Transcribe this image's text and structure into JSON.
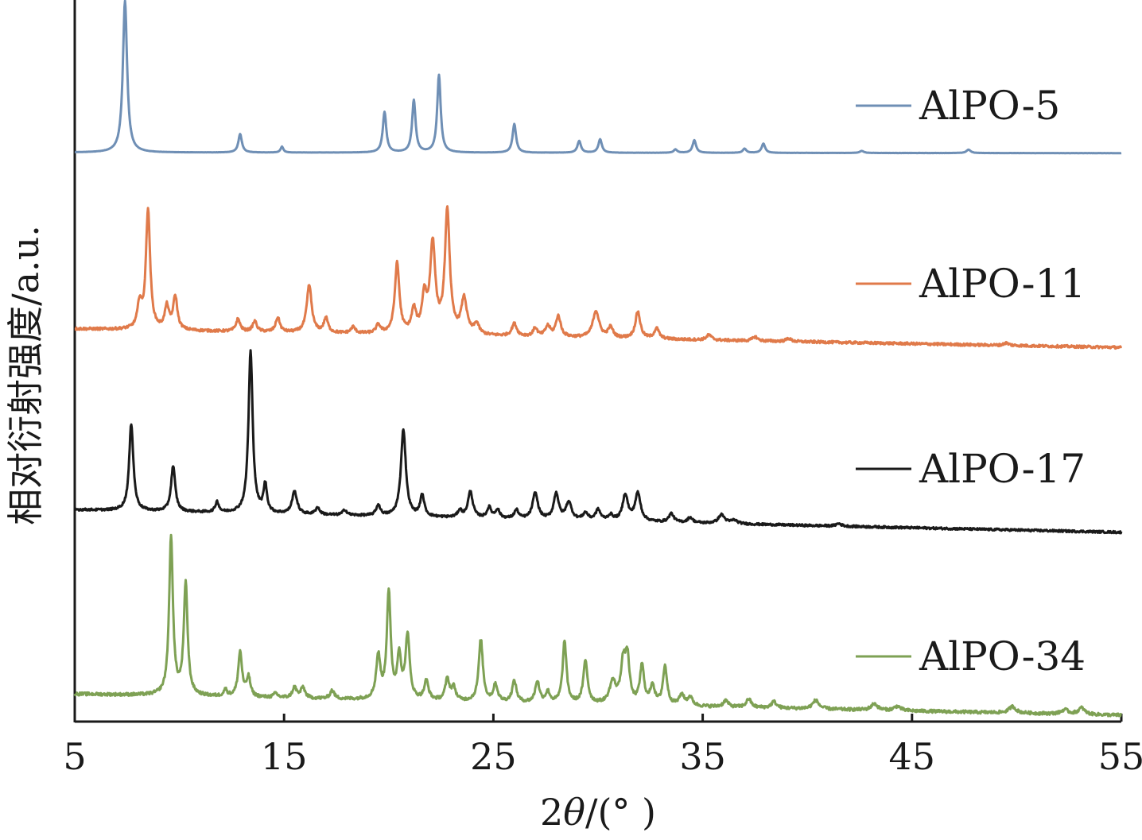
{
  "chart_data": {
    "type": "line",
    "title": "",
    "xlabel_prefix": "2",
    "xlabel_theta": "θ",
    "xlabel_suffix": "/(° )",
    "ylabel": "相对衍射强度/a.u.",
    "xlim": [
      5,
      55
    ],
    "xticks": [
      "5",
      "15",
      "25",
      "35",
      "45",
      "55"
    ],
    "legend_position": "right, next to each trace",
    "series": [
      {
        "name": "AlPO-5",
        "color": "#6f8fb5",
        "baseline_start": 0.95,
        "baseline_end": 0.91,
        "noise": 0.004,
        "peaks": [
          [
            7.4,
            9.0,
            0.12
          ],
          [
            12.9,
            1.1,
            0.1
          ],
          [
            14.9,
            0.35,
            0.08
          ],
          [
            19.8,
            2.4,
            0.1
          ],
          [
            21.2,
            3.1,
            0.1
          ],
          [
            22.4,
            4.6,
            0.1
          ],
          [
            26.0,
            1.7,
            0.1
          ],
          [
            29.1,
            0.7,
            0.1
          ],
          [
            30.1,
            0.8,
            0.1
          ],
          [
            33.7,
            0.2,
            0.1
          ],
          [
            34.6,
            0.75,
            0.1
          ],
          [
            37.0,
            0.25,
            0.1
          ],
          [
            37.9,
            0.55,
            0.1
          ],
          [
            42.6,
            0.12,
            0.12
          ],
          [
            47.7,
            0.2,
            0.12
          ]
        ]
      },
      {
        "name": "AlPO-11",
        "color": "#e07a4a",
        "baseline_start": 1.2,
        "baseline_end": 0.3,
        "noise": 0.06,
        "peaks": [
          [
            8.1,
            1.2,
            0.12
          ],
          [
            8.5,
            5.8,
            0.12
          ],
          [
            9.4,
            1.1,
            0.12
          ],
          [
            9.8,
            1.6,
            0.12
          ],
          [
            12.8,
            0.6,
            0.12
          ],
          [
            13.6,
            0.5,
            0.12
          ],
          [
            14.7,
            0.7,
            0.12
          ],
          [
            16.2,
            2.3,
            0.14
          ],
          [
            17.0,
            0.7,
            0.12
          ],
          [
            18.3,
            0.3,
            0.12
          ],
          [
            19.5,
            0.4,
            0.12
          ],
          [
            20.4,
            3.4,
            0.13
          ],
          [
            21.2,
            1.1,
            0.13
          ],
          [
            21.7,
            1.7,
            0.13
          ],
          [
            22.1,
            4.3,
            0.15
          ],
          [
            22.8,
            5.9,
            0.14
          ],
          [
            23.6,
            1.7,
            0.16
          ],
          [
            24.2,
            0.5,
            0.14
          ],
          [
            26.0,
            0.6,
            0.14
          ],
          [
            27.0,
            0.4,
            0.12
          ],
          [
            27.6,
            0.5,
            0.14
          ],
          [
            28.1,
            1.0,
            0.14
          ],
          [
            29.9,
            1.3,
            0.18
          ],
          [
            30.6,
            0.5,
            0.14
          ],
          [
            31.9,
            1.3,
            0.14
          ],
          [
            32.8,
            0.5,
            0.14
          ],
          [
            35.3,
            0.25,
            0.14
          ],
          [
            37.5,
            0.2,
            0.14
          ],
          [
            39.1,
            0.15,
            0.14
          ],
          [
            49.5,
            0.12,
            0.14
          ]
        ]
      },
      {
        "name": "AlPO-17",
        "color": "#1a1a1a",
        "baseline_start": 1.4,
        "baseline_end": 0.1,
        "noise": 0.06,
        "peaks": [
          [
            7.7,
            5.0,
            0.12
          ],
          [
            9.7,
            2.6,
            0.12
          ],
          [
            11.8,
            0.6,
            0.1
          ],
          [
            13.4,
            9.3,
            0.12
          ],
          [
            14.1,
            1.6,
            0.1
          ],
          [
            15.5,
            1.3,
            0.14
          ],
          [
            16.6,
            0.4,
            0.12
          ],
          [
            17.9,
            0.3,
            0.12
          ],
          [
            19.5,
            0.6,
            0.12
          ],
          [
            20.7,
            5.0,
            0.14
          ],
          [
            21.6,
            1.2,
            0.12
          ],
          [
            23.4,
            0.4,
            0.12
          ],
          [
            23.9,
            1.5,
            0.14
          ],
          [
            24.8,
            0.6,
            0.12
          ],
          [
            25.2,
            0.5,
            0.12
          ],
          [
            26.1,
            0.5,
            0.12
          ],
          [
            27.0,
            1.5,
            0.15
          ],
          [
            28.0,
            1.5,
            0.14
          ],
          [
            28.6,
            1.0,
            0.16
          ],
          [
            29.4,
            0.4,
            0.14
          ],
          [
            30.0,
            0.6,
            0.14
          ],
          [
            30.6,
            0.3,
            0.14
          ],
          [
            31.3,
            1.5,
            0.15
          ],
          [
            31.9,
            1.6,
            0.16
          ],
          [
            33.5,
            0.5,
            0.14
          ],
          [
            34.4,
            0.3,
            0.14
          ],
          [
            35.9,
            0.5,
            0.18
          ],
          [
            36.5,
            0.2,
            0.18
          ],
          [
            41.5,
            0.15,
            0.15
          ]
        ]
      },
      {
        "name": "AlPO-34",
        "color": "#7ea154",
        "baseline_start": 1.0,
        "baseline_end": 0.0,
        "noise": 0.07,
        "peaks": [
          [
            9.6,
            7.4,
            0.11
          ],
          [
            10.3,
            5.2,
            0.11
          ],
          [
            12.2,
            0.3,
            0.1
          ],
          [
            12.9,
            2.1,
            0.11
          ],
          [
            13.3,
            0.9,
            0.11
          ],
          [
            14.6,
            0.2,
            0.11
          ],
          [
            15.5,
            0.5,
            0.12
          ],
          [
            15.9,
            0.5,
            0.12
          ],
          [
            17.3,
            0.4,
            0.12
          ],
          [
            19.5,
            2.0,
            0.12
          ],
          [
            20.0,
            5.0,
            0.11
          ],
          [
            20.5,
            2.0,
            0.11
          ],
          [
            20.9,
            3.0,
            0.12
          ],
          [
            21.8,
            0.9,
            0.12
          ],
          [
            22.8,
            1.0,
            0.12
          ],
          [
            23.1,
            0.6,
            0.12
          ],
          [
            24.4,
            2.9,
            0.12
          ],
          [
            25.1,
            0.8,
            0.12
          ],
          [
            26.0,
            1.0,
            0.12
          ],
          [
            27.1,
            1.0,
            0.12
          ],
          [
            27.6,
            0.5,
            0.12
          ],
          [
            28.4,
            2.9,
            0.11
          ],
          [
            29.4,
            2.0,
            0.12
          ],
          [
            30.7,
            1.0,
            0.18
          ],
          [
            31.2,
            1.8,
            0.14
          ],
          [
            31.4,
            2.0,
            0.12
          ],
          [
            32.1,
            1.8,
            0.12
          ],
          [
            32.6,
            0.9,
            0.12
          ],
          [
            33.2,
            1.8,
            0.12
          ],
          [
            34.0,
            0.5,
            0.14
          ],
          [
            34.4,
            0.4,
            0.14
          ],
          [
            36.1,
            0.3,
            0.14
          ],
          [
            37.2,
            0.4,
            0.14
          ],
          [
            38.4,
            0.3,
            0.14
          ],
          [
            40.4,
            0.4,
            0.18
          ],
          [
            43.2,
            0.3,
            0.18
          ],
          [
            44.3,
            0.2,
            0.18
          ],
          [
            49.8,
            0.3,
            0.2
          ],
          [
            52.3,
            0.2,
            0.2
          ],
          [
            53.1,
            0.3,
            0.18
          ]
        ]
      }
    ]
  }
}
